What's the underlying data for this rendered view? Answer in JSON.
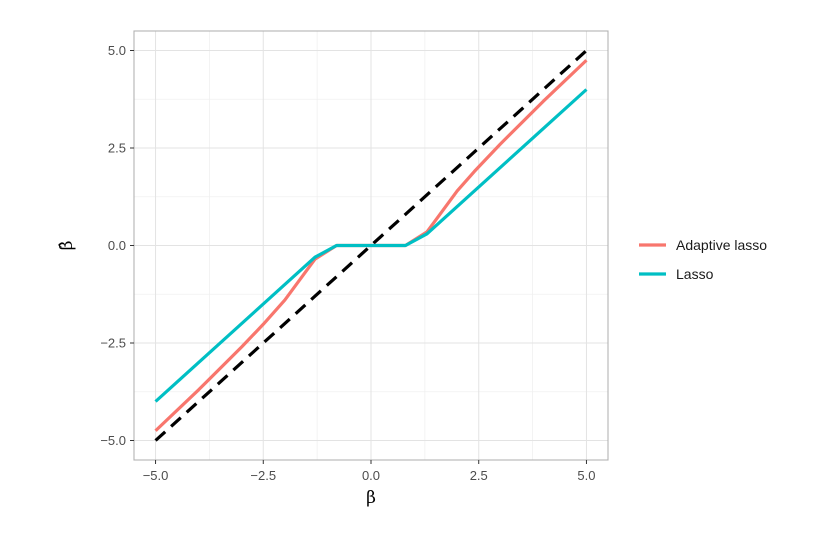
{
  "chart_data": {
    "type": "line",
    "title": "",
    "xlabel": "β",
    "ylabel": "β̂",
    "xlim": [
      -5.5,
      5.5
    ],
    "ylim": [
      -5.5,
      5.5
    ],
    "x_ticks": [
      -5.0,
      -2.5,
      0.0,
      2.5,
      5.0
    ],
    "y_ticks": [
      -5.0,
      -2.5,
      0.0,
      2.5,
      5.0
    ],
    "x_tick_labels": [
      "−5.0",
      "−2.5",
      "0.0",
      "2.5",
      "5.0"
    ],
    "y_tick_labels": [
      "−5.0",
      "−2.5",
      "0.0",
      "2.5",
      "5.0"
    ],
    "grid": true,
    "legend_position": "right",
    "reference_line": {
      "style": "dashed",
      "color": "#000000",
      "x": [
        -5.0,
        5.0
      ],
      "y": [
        -5.0,
        5.0
      ]
    },
    "series": [
      {
        "name": "Adaptive lasso",
        "color": "#F8766D",
        "x": [
          -5.0,
          -4.0,
          -3.0,
          -2.5,
          -2.0,
          -1.5,
          -1.3,
          -0.8,
          0.0,
          0.8,
          1.3,
          1.5,
          2.0,
          2.4,
          3.0,
          4.0,
          5.0
        ],
        "y": [
          -4.75,
          -3.7,
          -2.6,
          -2.02,
          -1.4,
          -0.65,
          -0.35,
          0.0,
          0.0,
          0.0,
          0.35,
          0.65,
          1.4,
          1.9,
          2.6,
          3.7,
          4.75
        ]
      },
      {
        "name": "Lasso",
        "color": "#00BFC4",
        "x": [
          -5.0,
          -1.3,
          -0.8,
          0.0,
          0.8,
          1.3,
          5.0
        ],
        "y": [
          -4.0,
          -0.3,
          0.0,
          0.0,
          0.0,
          0.3,
          4.0
        ]
      }
    ]
  }
}
